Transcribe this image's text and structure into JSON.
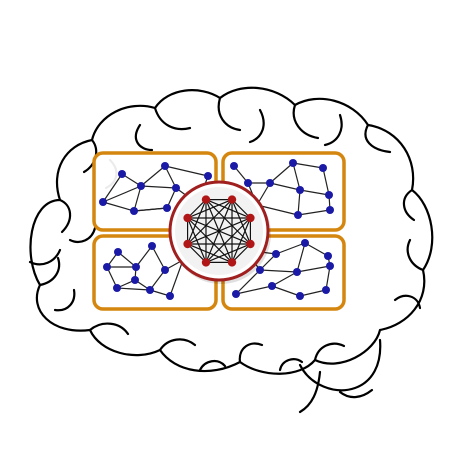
{
  "colors": {
    "background": "#ffffff",
    "brain_outline": "#000000",
    "module_border": "#d4860e",
    "module_fill": "#ffffff",
    "module_node": "#1a1aa6",
    "module_edge": "#222222",
    "hub_ring": "#a01f1f",
    "hub_node": "#b01616",
    "hub_edge": "#111111"
  },
  "diagram": {
    "description_icons": [
      "brain-outline-icon",
      "network-graph-icon"
    ],
    "modules": [
      {
        "id": "module-top-left"
      },
      {
        "id": "module-top-right"
      },
      {
        "id": "module-bottom-left"
      },
      {
        "id": "module-bottom-right"
      }
    ],
    "hub": {
      "id": "central-hub",
      "node_count": 8,
      "fully_connected": true
    }
  }
}
